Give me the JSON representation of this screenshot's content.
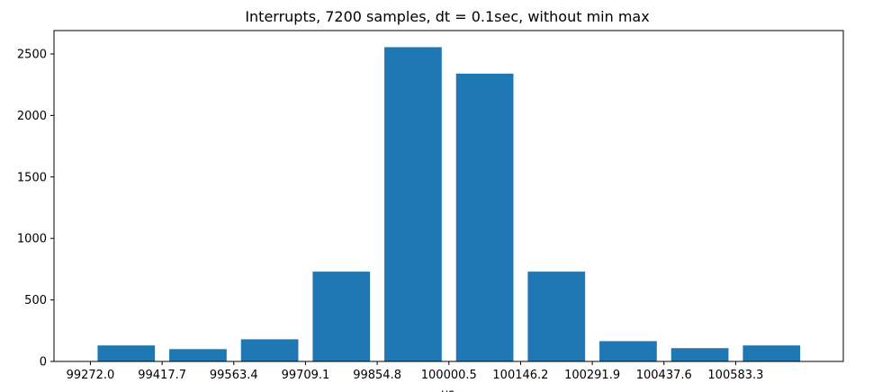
{
  "chart_data": {
    "type": "bar",
    "title": "Interrupts, 7200 samples, dt = 0.1sec, without min max",
    "xlabel": "us",
    "ylabel": "",
    "categories": [
      "99272.0",
      "99417.7",
      "99563.4",
      "99709.1",
      "99854.8",
      "100000.5",
      "100146.2",
      "100291.9",
      "100437.6",
      "100583.3"
    ],
    "category_numeric": [
      99272.0,
      99417.7,
      99563.4,
      99709.1,
      99854.8,
      100000.5,
      100146.2,
      100291.9,
      100437.6,
      100583.3
    ],
    "bin_width": 145.7,
    "bar_fraction": 0.8,
    "values": [
      130,
      100,
      180,
      730,
      2555,
      2340,
      730,
      165,
      108,
      130
    ],
    "xlim": [
      99198.0,
      100802.0
    ],
    "ylim": [
      0,
      2690
    ],
    "yticks": [
      0,
      500,
      1000,
      1500,
      2000,
      2500
    ],
    "bar_color": "#1f77b4",
    "grid": false,
    "legend": "none"
  }
}
